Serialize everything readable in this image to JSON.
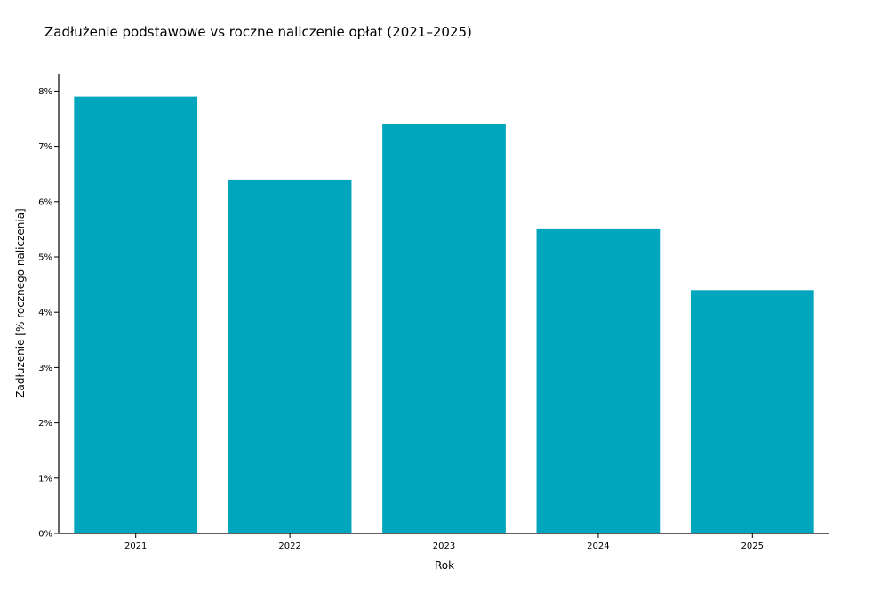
{
  "chart_data": {
    "type": "bar",
    "title": "Zadłużenie podstawowe vs roczne naliczenie opłat (2021–2025)",
    "xlabel": "Rok",
    "ylabel": "Zadłużenie [% rocznego naliczenia]",
    "categories": [
      "2021",
      "2022",
      "2023",
      "2024",
      "2025"
    ],
    "values": [
      7.9,
      6.4,
      7.4,
      5.5,
      4.4
    ],
    "ylim": [
      0,
      8.3
    ],
    "yticks": [
      0,
      1,
      2,
      3,
      4,
      5,
      6,
      7,
      8
    ],
    "ytick_labels": [
      "0%",
      "1%",
      "2%",
      "3%",
      "4%",
      "5%",
      "6%",
      "7%",
      "8%"
    ],
    "bar_color": "#00a5be",
    "grid": false,
    "legend": "none"
  }
}
